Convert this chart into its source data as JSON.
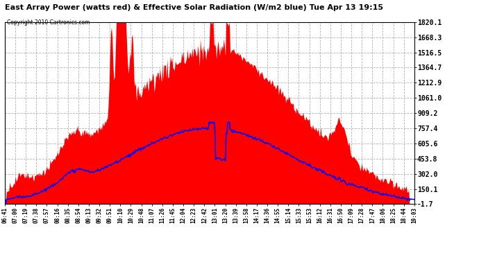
{
  "title": "East Array Power (watts red) & Effective Solar Radiation (W/m2 blue) Tue Apr 13 19:15",
  "copyright": "Copyright 2010 Cartronics.com",
  "ymin": -1.7,
  "ymax": 1820.1,
  "yticks": [
    1820.1,
    1668.3,
    1516.5,
    1364.7,
    1212.9,
    1061.0,
    909.2,
    757.4,
    605.6,
    453.8,
    302.0,
    150.1,
    -1.7
  ],
  "x_labels": [
    "06:41",
    "07:00",
    "07:19",
    "07:38",
    "07:57",
    "08:16",
    "08:35",
    "08:54",
    "09:13",
    "09:32",
    "09:51",
    "10:10",
    "10:29",
    "10:48",
    "11:07",
    "11:26",
    "11:45",
    "12:04",
    "12:23",
    "12:42",
    "13:01",
    "13:20",
    "13:39",
    "13:58",
    "14:17",
    "14:36",
    "14:55",
    "15:14",
    "15:33",
    "15:53",
    "16:12",
    "16:31",
    "16:50",
    "17:09",
    "17:28",
    "17:47",
    "18:06",
    "18:25",
    "18:44",
    "19:03"
  ],
  "background_color": "#ffffff",
  "plot_bg_color": "#ffffff",
  "grid_color": "#aaaaaa",
  "red_color": "#ff0000",
  "blue_color": "#0000ff"
}
